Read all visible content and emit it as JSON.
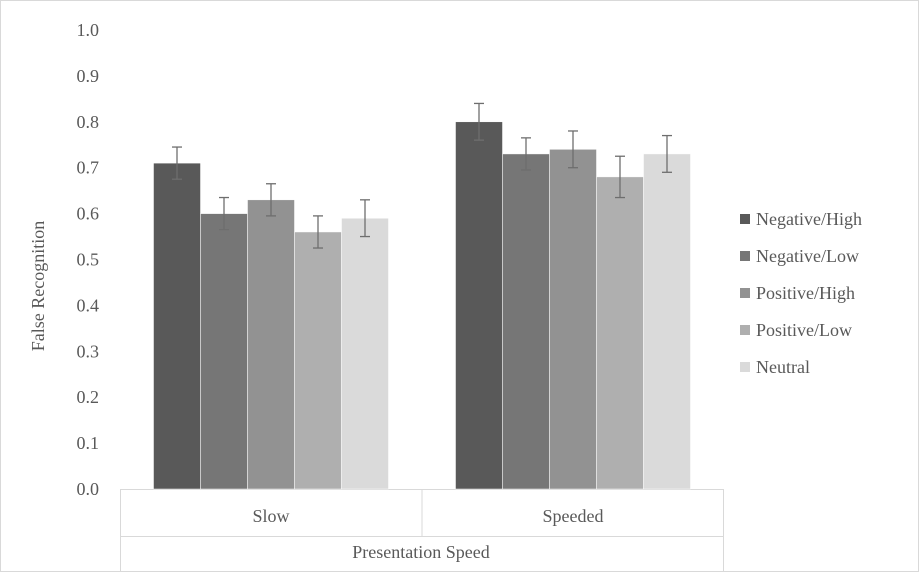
{
  "chart_data": {
    "type": "bar",
    "title": "",
    "xlabel": "Presentation Speed",
    "ylabel": "False Recognition",
    "categories": [
      "Slow",
      "Speeded"
    ],
    "ylim": [
      0,
      1.0
    ],
    "yticks": [
      "0.0",
      "0.1",
      "0.2",
      "0.3",
      "0.4",
      "0.5",
      "0.6",
      "0.7",
      "0.8",
      "0.9",
      "1.0"
    ],
    "grid": false,
    "legend_position": "right",
    "series": [
      {
        "name": "Negative/High",
        "color": "#595959",
        "values": [
          0.71,
          0.8
        ],
        "errors": [
          0.035,
          0.04
        ]
      },
      {
        "name": "Negative/Low",
        "color": "#767676",
        "values": [
          0.6,
          0.73
        ],
        "errors": [
          0.035,
          0.035
        ]
      },
      {
        "name": "Positive/High",
        "color": "#929292",
        "values": [
          0.63,
          0.74
        ],
        "errors": [
          0.035,
          0.04
        ]
      },
      {
        "name": "Positive/Low",
        "color": "#afafaf",
        "values": [
          0.56,
          0.68
        ],
        "errors": [
          0.035,
          0.045
        ]
      },
      {
        "name": "Neutral",
        "color": "#dadada",
        "values": [
          0.59,
          0.73
        ],
        "errors": [
          0.04,
          0.04
        ]
      }
    ]
  }
}
